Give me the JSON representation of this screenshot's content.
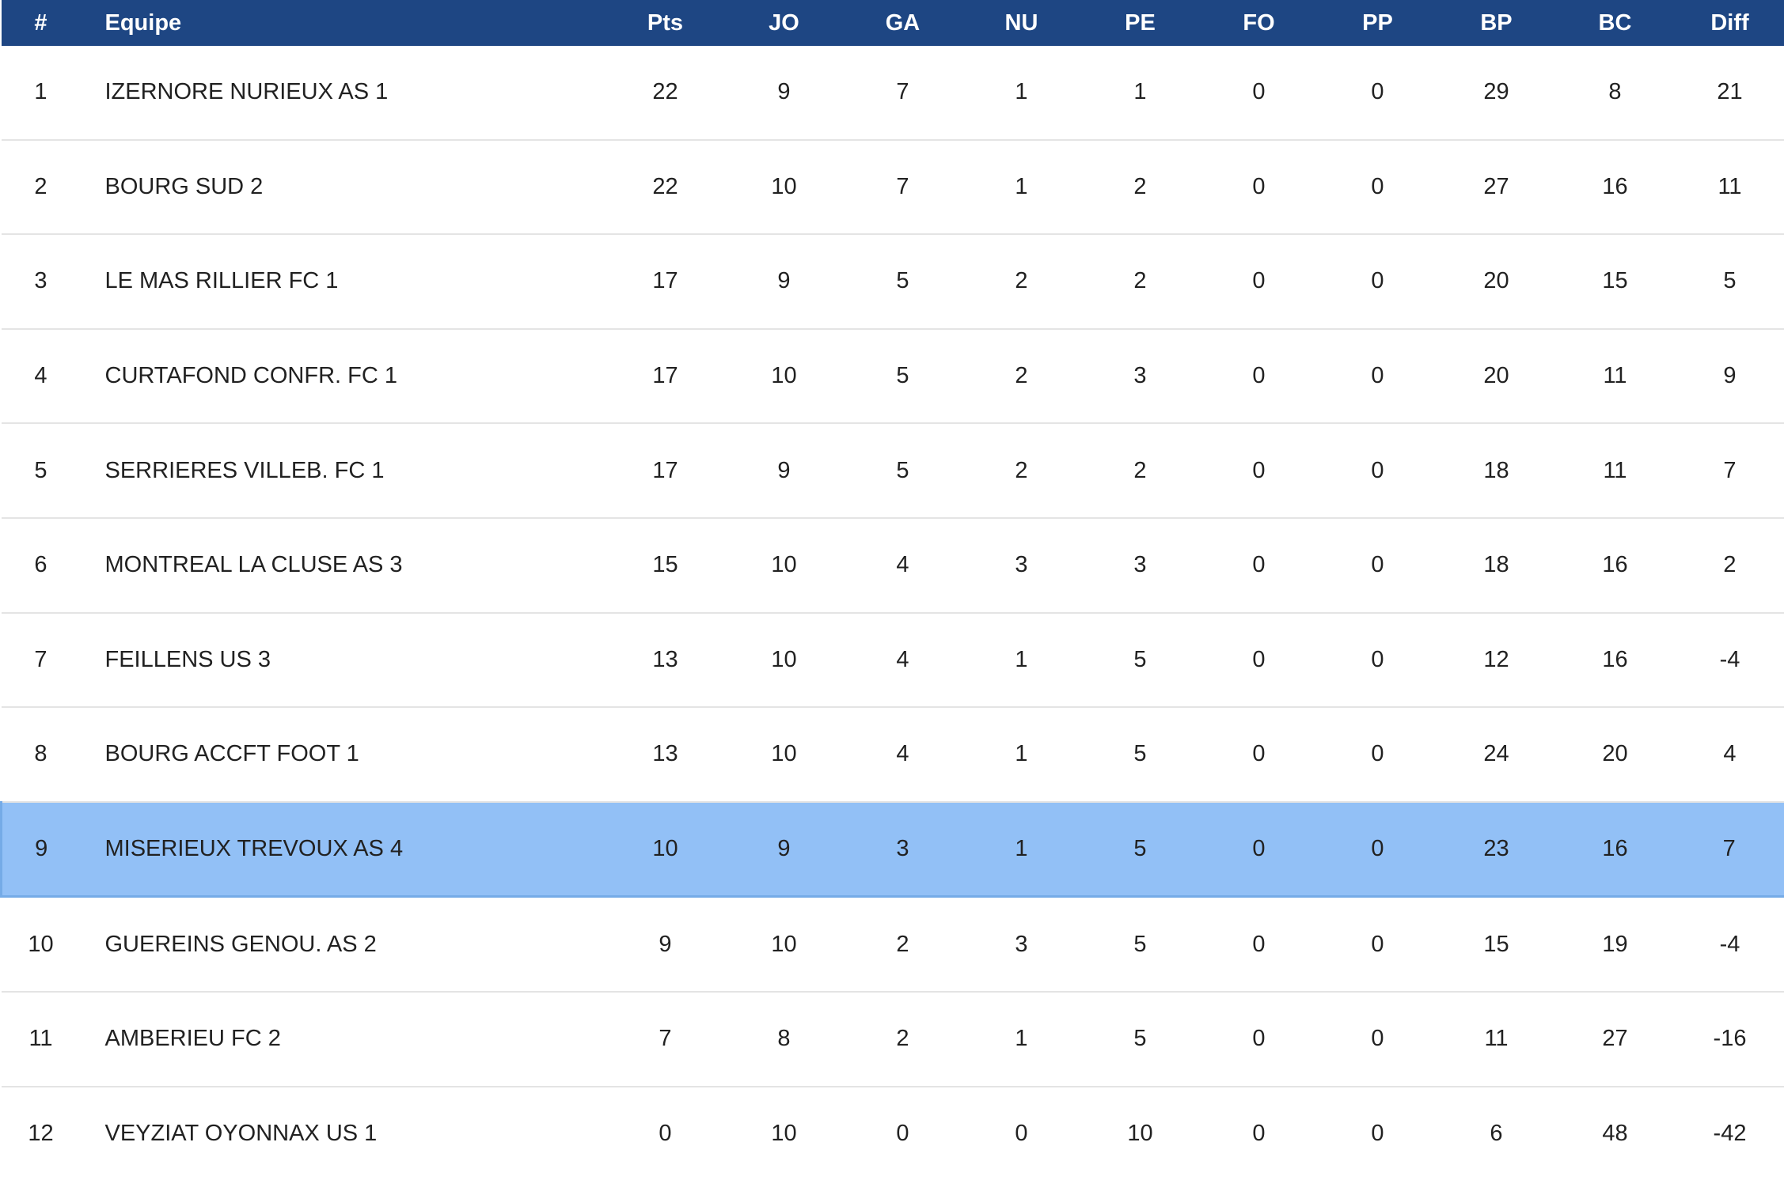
{
  "colors": {
    "header_bg": "#1e4683",
    "header_text": "#ffffff",
    "row_text": "#212121",
    "row_divider": "#e4e4e4",
    "highlight_bg": "#92c0f6",
    "highlight_border": "#75abe7"
  },
  "table": {
    "columns": [
      {
        "key": "rank",
        "label": "#"
      },
      {
        "key": "team",
        "label": "Equipe"
      },
      {
        "key": "pts",
        "label": "Pts"
      },
      {
        "key": "jo",
        "label": "JO"
      },
      {
        "key": "ga",
        "label": "GA"
      },
      {
        "key": "nu",
        "label": "NU"
      },
      {
        "key": "pe",
        "label": "PE"
      },
      {
        "key": "fo",
        "label": "FO"
      },
      {
        "key": "pp",
        "label": "PP"
      },
      {
        "key": "bp",
        "label": "BP"
      },
      {
        "key": "bc",
        "label": "BC"
      },
      {
        "key": "diff",
        "label": "Diff"
      }
    ],
    "rows": [
      {
        "rank": "1",
        "team": "IZERNORE NURIEUX AS 1",
        "pts": "22",
        "jo": "9",
        "ga": "7",
        "nu": "1",
        "pe": "1",
        "fo": "0",
        "pp": "0",
        "bp": "29",
        "bc": "8",
        "diff": "21",
        "highlighted": false
      },
      {
        "rank": "2",
        "team": "BOURG SUD 2",
        "pts": "22",
        "jo": "10",
        "ga": "7",
        "nu": "1",
        "pe": "2",
        "fo": "0",
        "pp": "0",
        "bp": "27",
        "bc": "16",
        "diff": "11",
        "highlighted": false
      },
      {
        "rank": "3",
        "team": "LE MAS RILLIER FC 1",
        "pts": "17",
        "jo": "9",
        "ga": "5",
        "nu": "2",
        "pe": "2",
        "fo": "0",
        "pp": "0",
        "bp": "20",
        "bc": "15",
        "diff": "5",
        "highlighted": false
      },
      {
        "rank": "4",
        "team": "CURTAFOND CONFR. FC 1",
        "pts": "17",
        "jo": "10",
        "ga": "5",
        "nu": "2",
        "pe": "3",
        "fo": "0",
        "pp": "0",
        "bp": "20",
        "bc": "11",
        "diff": "9",
        "highlighted": false
      },
      {
        "rank": "5",
        "team": "SERRIERES VILLEB. FC 1",
        "pts": "17",
        "jo": "9",
        "ga": "5",
        "nu": "2",
        "pe": "2",
        "fo": "0",
        "pp": "0",
        "bp": "18",
        "bc": "11",
        "diff": "7",
        "highlighted": false
      },
      {
        "rank": "6",
        "team": "MONTREAL LA CLUSE AS 3",
        "pts": "15",
        "jo": "10",
        "ga": "4",
        "nu": "3",
        "pe": "3",
        "fo": "0",
        "pp": "0",
        "bp": "18",
        "bc": "16",
        "diff": "2",
        "highlighted": false
      },
      {
        "rank": "7",
        "team": "FEILLENS US 3",
        "pts": "13",
        "jo": "10",
        "ga": "4",
        "nu": "1",
        "pe": "5",
        "fo": "0",
        "pp": "0",
        "bp": "12",
        "bc": "16",
        "diff": "-4",
        "highlighted": false
      },
      {
        "rank": "8",
        "team": "BOURG ACCFT FOOT 1",
        "pts": "13",
        "jo": "10",
        "ga": "4",
        "nu": "1",
        "pe": "5",
        "fo": "0",
        "pp": "0",
        "bp": "24",
        "bc": "20",
        "diff": "4",
        "highlighted": false
      },
      {
        "rank": "9",
        "team": "MISERIEUX TREVOUX AS 4",
        "pts": "10",
        "jo": "9",
        "ga": "3",
        "nu": "1",
        "pe": "5",
        "fo": "0",
        "pp": "0",
        "bp": "23",
        "bc": "16",
        "diff": "7",
        "highlighted": true
      },
      {
        "rank": "10",
        "team": "GUEREINS GENOU. AS 2",
        "pts": "9",
        "jo": "10",
        "ga": "2",
        "nu": "3",
        "pe": "5",
        "fo": "0",
        "pp": "0",
        "bp": "15",
        "bc": "19",
        "diff": "-4",
        "highlighted": false
      },
      {
        "rank": "11",
        "team": "AMBERIEU FC 2",
        "pts": "7",
        "jo": "8",
        "ga": "2",
        "nu": "1",
        "pe": "5",
        "fo": "0",
        "pp": "0",
        "bp": "11",
        "bc": "27",
        "diff": "-16",
        "highlighted": false
      },
      {
        "rank": "12",
        "team": "VEYZIAT OYONNAX US 1",
        "pts": "0",
        "jo": "10",
        "ga": "0",
        "nu": "0",
        "pe": "10",
        "fo": "0",
        "pp": "0",
        "bp": "6",
        "bc": "48",
        "diff": "-42",
        "highlighted": false
      }
    ]
  }
}
